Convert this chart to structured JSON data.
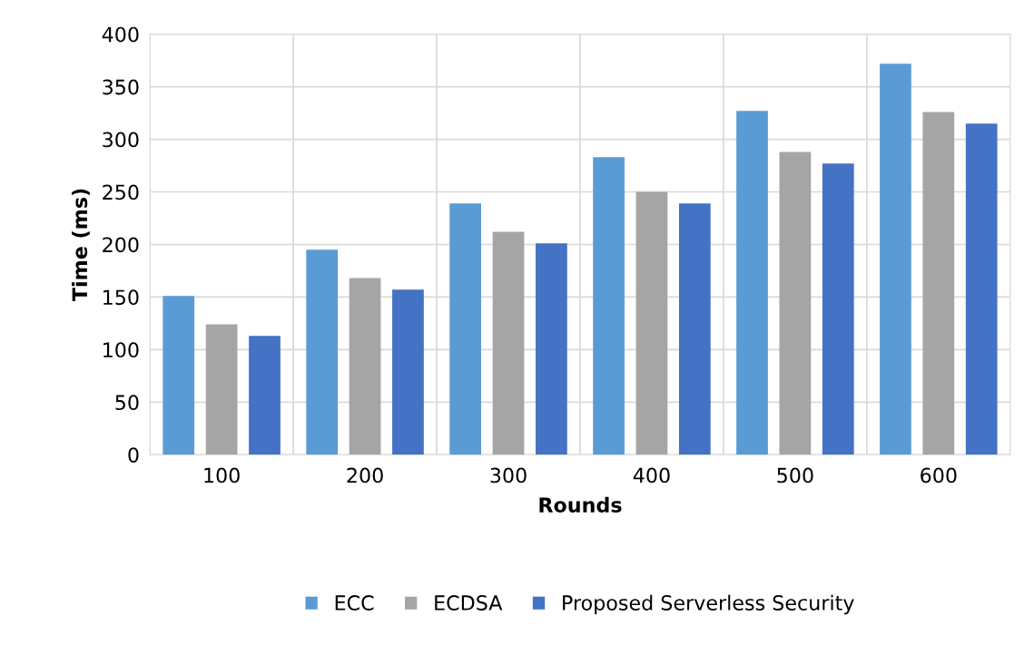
{
  "chart_data": {
    "type": "bar",
    "xlabel": "Rounds",
    "ylabel": "Time (ms)",
    "categories": [
      "100",
      "200",
      "300",
      "400",
      "500",
      "600"
    ],
    "series": [
      {
        "name": "ECC",
        "color": "#5b9bd5",
        "values": [
          151,
          195,
          239,
          283,
          327,
          372
        ]
      },
      {
        "name": "ECDSA",
        "color": "#a5a5a5",
        "values": [
          124,
          168,
          212,
          250,
          288,
          326
        ]
      },
      {
        "name": "Proposed Serverless Security",
        "color": "#4472c4",
        "values": [
          113,
          157,
          201,
          239,
          277,
          315
        ]
      }
    ],
    "ylim": [
      0,
      400
    ],
    "yticks": [
      0,
      50,
      100,
      150,
      200,
      250,
      300,
      350,
      400
    ],
    "grid": true,
    "legend": "bottom"
  }
}
